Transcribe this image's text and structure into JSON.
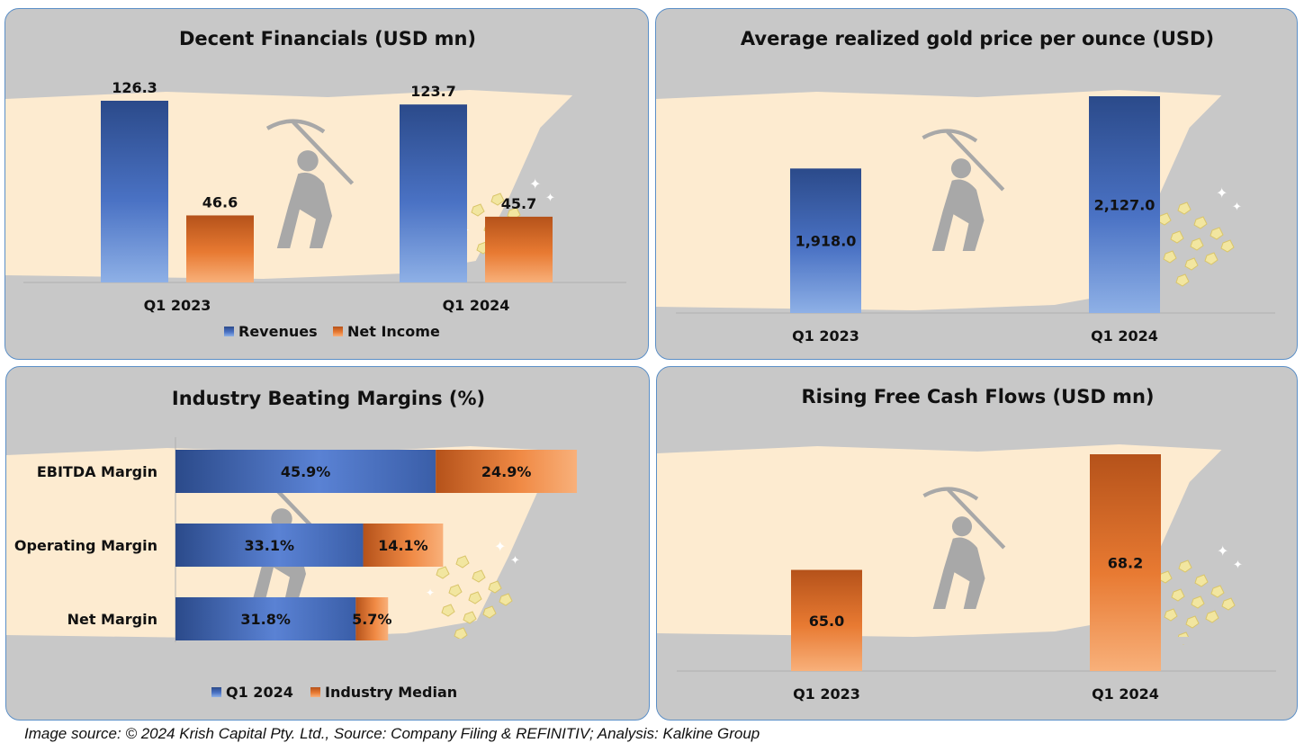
{
  "colors": {
    "panel_bg": "#c8c8c8",
    "panel_border": "#5b8fc7",
    "backdrop": "#fdebd0",
    "blue_dark": "#2b4a8a",
    "blue_light": "#8eb0e6",
    "orange_dark": "#b5521a",
    "orange_light": "#f8b07a"
  },
  "source_text": "Image source: © 2024 Krish Capital Pty. Ltd., Source: Company Filing & REFINITIV; Analysis: Kalkine Group",
  "chart_data": [
    {
      "type": "bar",
      "title": "Decent Financials (USD mn)",
      "categories": [
        "Q1 2023",
        "Q1 2024"
      ],
      "series": [
        {
          "name": "Revenues",
          "values": [
            126.3,
            123.7
          ],
          "color": "blue"
        },
        {
          "name": "Net Income",
          "values": [
            46.6,
            45.7
          ],
          "color": "orange"
        }
      ],
      "value_labels": [
        [
          "126.3",
          "123.7"
        ],
        [
          "46.6",
          "45.7"
        ]
      ],
      "ylim": [
        0,
        126.3
      ],
      "legend": "bottom",
      "grid": false
    },
    {
      "type": "bar",
      "title": "Average realized gold price per ounce (USD)",
      "categories": [
        "Q1 2023",
        "Q1 2024"
      ],
      "values": [
        1918.0,
        2127.0
      ],
      "value_labels": [
        "1,918.0",
        "2,127.0"
      ],
      "ylim": [
        1500,
        2127
      ],
      "grid": false
    },
    {
      "type": "bar",
      "orientation": "horizontal-stacked",
      "title": "Industry Beating Margins (%)",
      "categories": [
        "EBITDA Margin",
        "Operating Margin",
        "Net Margin"
      ],
      "series": [
        {
          "name": "Q1 2024",
          "values": [
            45.9,
            33.1,
            31.8
          ],
          "color": "blue"
        },
        {
          "name": "Industry Median",
          "values": [
            24.9,
            14.1,
            5.7
          ],
          "color": "orange"
        }
      ],
      "value_labels": [
        [
          "45.9%",
          "33.1%",
          "31.8%"
        ],
        [
          "24.9%",
          "14.1%",
          "5.7%"
        ]
      ],
      "legend": "bottom",
      "grid": false
    },
    {
      "type": "bar",
      "title": "Rising Free Cash Flows (USD mn)",
      "categories": [
        "Q1 2023",
        "Q1 2024"
      ],
      "values": [
        65.0,
        68.2
      ],
      "value_labels": [
        "65.0",
        "68.2"
      ],
      "ylim": [
        62.2,
        68.2
      ],
      "grid": false
    }
  ]
}
